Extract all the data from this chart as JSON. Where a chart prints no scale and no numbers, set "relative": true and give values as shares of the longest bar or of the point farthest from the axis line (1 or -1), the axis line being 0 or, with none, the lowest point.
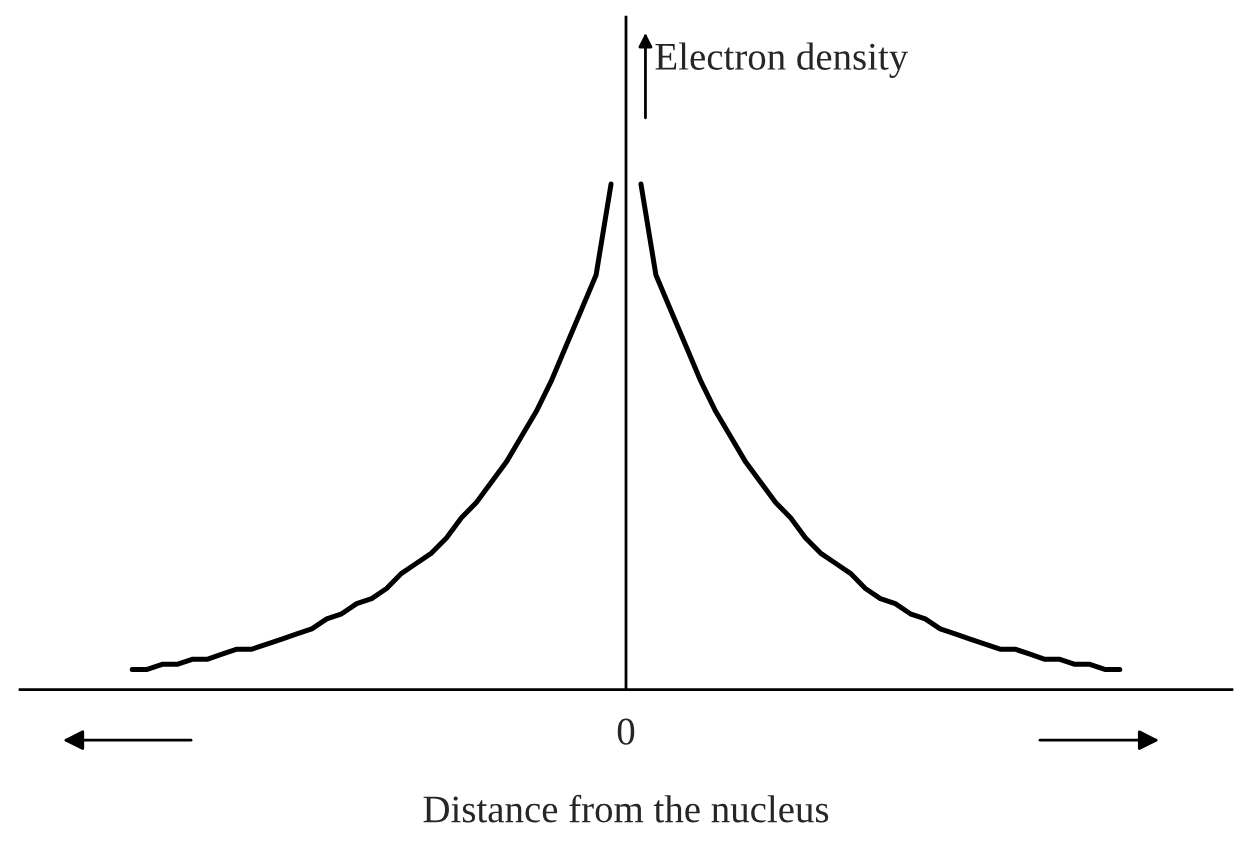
{
  "chart_data": {
    "type": "line",
    "relative": true,
    "xlabel": "Distance from the nucleus",
    "annotations": [
      "Electron density",
      "0"
    ],
    "categories": [
      null,
      null,
      null,
      null,
      null,
      null,
      null,
      null,
      null,
      null,
      null,
      null,
      null,
      null,
      null,
      null,
      null,
      null,
      null,
      null,
      null,
      null,
      null,
      null,
      null,
      null,
      null,
      null,
      null,
      null,
      null,
      null,
      null,
      null,
      null,
      null,
      null,
      null,
      null,
      null,
      null,
      null,
      null,
      null,
      null,
      null,
      null,
      null,
      null,
      null,
      null,
      null,
      null,
      null,
      null,
      null,
      null,
      null,
      null,
      null,
      null,
      null,
      null,
      null,
      null,
      null,
      null
    ],
    "legend": false,
    "marker": "none",
    "line_style": "solid",
    "series": [
      {
        "color": "#000000",
        "values": [
          0.04,
          0.04,
          0.05,
          0.05,
          0.06,
          0.06,
          0.07,
          0.08,
          0.08,
          0.09,
          0.1,
          0.11,
          0.12,
          0.14,
          0.15,
          0.17,
          0.18,
          0.2,
          0.23,
          0.25,
          0.27,
          0.3,
          0.34,
          0.37,
          0.41,
          0.45,
          0.5,
          0.55,
          0.61,
          0.68,
          0.75,
          0.82,
          1,
          null,
          null,
          null,
          null,
          null,
          null,
          null,
          null,
          null,
          null,
          null,
          null,
          null,
          null,
          null,
          null,
          null,
          null,
          null,
          null,
          null,
          null,
          null,
          null,
          null,
          null,
          null,
          null,
          null,
          null,
          null,
          null,
          null,
          null
        ]
      },
      {
        "color": "#000000",
        "values": [
          null,
          null,
          null,
          null,
          null,
          null,
          null,
          null,
          null,
          null,
          null,
          null,
          null,
          null,
          null,
          null,
          null,
          null,
          null,
          null,
          null,
          null,
          null,
          null,
          null,
          null,
          null,
          null,
          null,
          null,
          null,
          null,
          null,
          null,
          1,
          0.82,
          0.75,
          0.68,
          0.61,
          0.55,
          0.5,
          0.45,
          0.41,
          0.37,
          0.34,
          0.3,
          0.27,
          0.25,
          0.23,
          0.2,
          0.18,
          0.17,
          0.15,
          0.14,
          0.12,
          0.11,
          0.1,
          0.09,
          0.08,
          0.08,
          0.07,
          0.06,
          0.06,
          0.05,
          0.05,
          0.04,
          0.04
        ]
      }
    ]
  }
}
